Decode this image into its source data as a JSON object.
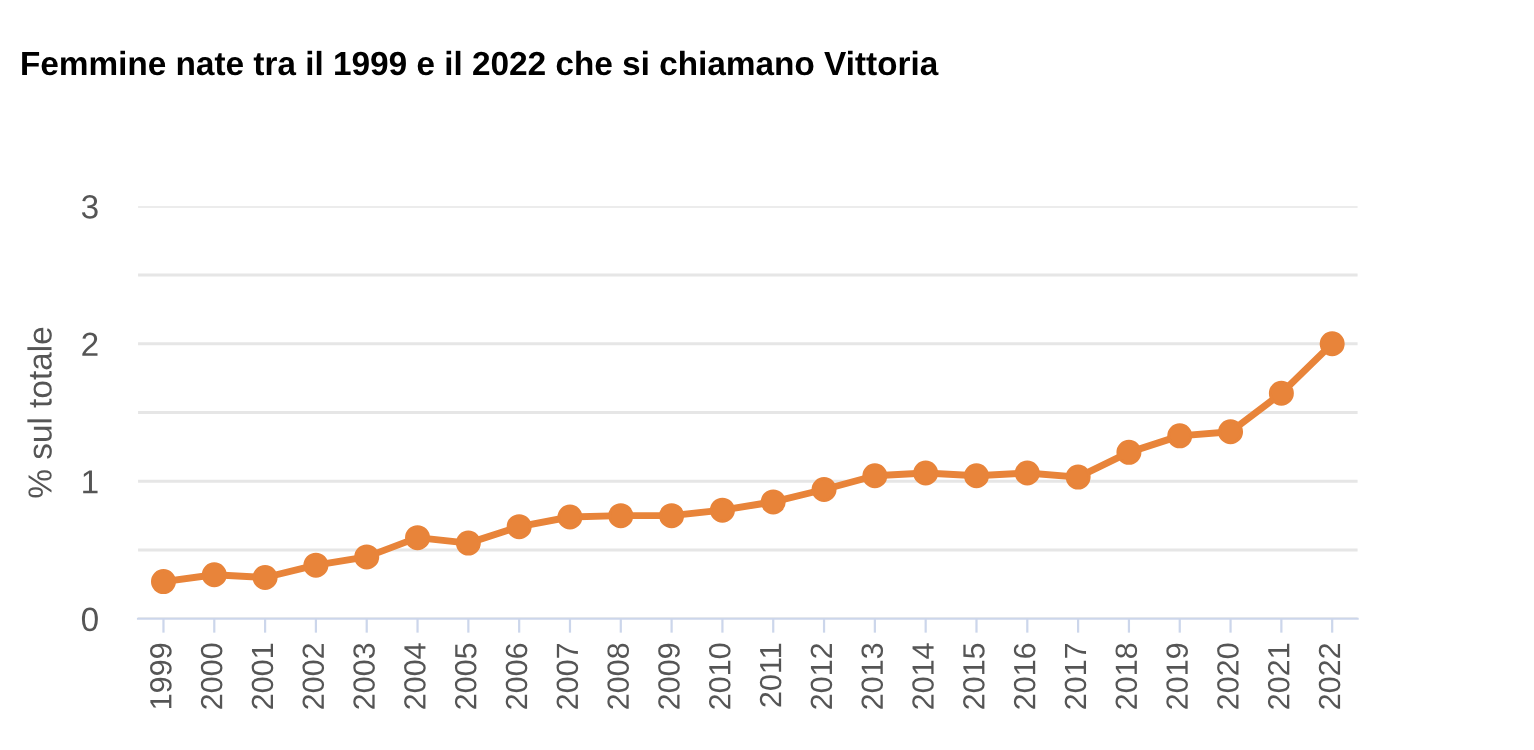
{
  "chart_data": {
    "type": "line",
    "title": "Femmine nate tra il 1999 e il 2022 che si chiamano Vittoria",
    "ylabel": "% sul totale",
    "categories": [
      "1999",
      "2000",
      "2001",
      "2002",
      "2003",
      "2004",
      "2005",
      "2006",
      "2007",
      "2008",
      "2009",
      "2010",
      "2011",
      "2012",
      "2013",
      "2014",
      "2015",
      "2016",
      "2017",
      "2018",
      "2019",
      "2020",
      "2021",
      "2022"
    ],
    "series": [
      {
        "color": "#e8843a",
        "values": [
          0.27,
          0.32,
          0.3,
          0.39,
          0.45,
          0.59,
          0.55,
          0.67,
          0.74,
          0.75,
          0.75,
          0.79,
          0.85,
          0.94,
          1.04,
          1.06,
          1.04,
          1.06,
          1.03,
          1.21,
          1.33,
          1.36,
          1.64,
          2.0
        ]
      }
    ],
    "ylim": [
      0,
      3
    ],
    "yticks": [
      0,
      {
        "value": 0.5,
        "label": null
      },
      1,
      {
        "value": 1.5,
        "label": null
      },
      2,
      {
        "value": 2.5,
        "label": null
      },
      3
    ],
    "grid": "y",
    "marker": "circle",
    "line_style": "solid"
  }
}
